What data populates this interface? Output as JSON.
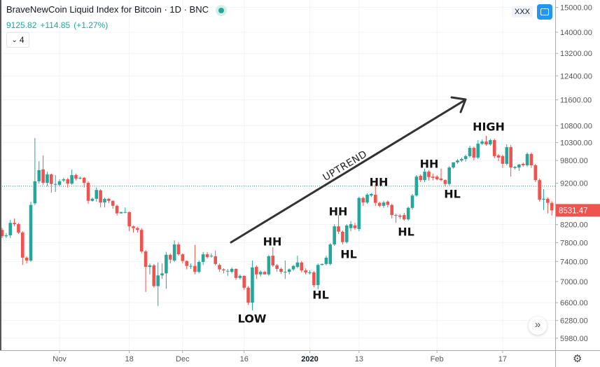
{
  "header": {
    "title": "BraveNewCoin Liquid Index for Bitcoin · 1D · BNC",
    "last": "9125.82",
    "change": "+114.85",
    "change_pct": "(+1.27%)",
    "legend_count": "4",
    "badge": "XXX"
  },
  "icons": {
    "fullscreen": "fullscreen-icon",
    "go_to_realtime": "double-chevron-right-icon",
    "settings": "gear-icon",
    "status": "status-dot-icon"
  },
  "colors": {
    "up": "#26a69a",
    "down": "#ef5350",
    "grid": "#f0f3fa",
    "accent": "#2196f3",
    "annotation": "#333333"
  },
  "annotations": {
    "uptrend": "UPTREND",
    "labels": [
      "LOW",
      "HH",
      "HL",
      "HH",
      "HL",
      "HH",
      "HL",
      "HH",
      "HL",
      "HIGH"
    ]
  },
  "chart_data": {
    "type": "candlestick",
    "title": "BraveNewCoin Liquid Index for Bitcoin · 1D · BNC",
    "y_scale": "log",
    "ylim": [
      5850,
      15500
    ],
    "y_ticks": [
      "15000.00",
      "14000.00",
      "13200.00",
      "12400.00",
      "11600.00",
      "10800.00",
      "10300.00",
      "9800.00",
      "9200.00",
      "8200.00",
      "7800.00",
      "7400.00",
      "7000.00",
      "6600.00",
      "6280.00",
      "5980.00"
    ],
    "x_ticks": [
      {
        "label": "Nov",
        "date": "2019-11-01"
      },
      {
        "label": "18",
        "date": "2019-11-18"
      },
      {
        "label": "Dec",
        "date": "2019-12-01"
      },
      {
        "label": "16",
        "date": "2019-12-16"
      },
      {
        "label": "2020",
        "date": "2020-01-01"
      },
      {
        "label": "13",
        "date": "2020-01-13"
      },
      {
        "label": "Feb",
        "date": "2020-02-01"
      },
      {
        "label": "17",
        "date": "2020-02-17"
      }
    ],
    "last_price_label": "8531.47",
    "price_line": 9125.82,
    "grid": true,
    "columns": [
      "date",
      "open",
      "high",
      "low",
      "close"
    ],
    "candles": [
      [
        "2019-10-18",
        8080,
        8130,
        7900,
        7940
      ],
      [
        "2019-10-19",
        7940,
        8010,
        7900,
        7960
      ],
      [
        "2019-10-20",
        7960,
        8310,
        7900,
        8240
      ],
      [
        "2019-10-21",
        8240,
        8340,
        8160,
        8210
      ],
      [
        "2019-10-22",
        8210,
        8240,
        7990,
        8020
      ],
      [
        "2019-10-23",
        8020,
        8050,
        7330,
        7480
      ],
      [
        "2019-10-24",
        7480,
        7510,
        7360,
        7420
      ],
      [
        "2019-10-25",
        7420,
        8740,
        7390,
        8660
      ],
      [
        "2019-10-26",
        8700,
        10430,
        8660,
        9250
      ],
      [
        "2019-10-27",
        9250,
        9780,
        9190,
        9540
      ],
      [
        "2019-10-28",
        9560,
        9940,
        9160,
        9210
      ],
      [
        "2019-10-29",
        9210,
        9500,
        9120,
        9430
      ],
      [
        "2019-10-30",
        9430,
        9450,
        8960,
        9180
      ],
      [
        "2019-10-31",
        9180,
        9410,
        8980,
        9180
      ],
      [
        "2019-11-01",
        9160,
        9300,
        9120,
        9250
      ],
      [
        "2019-11-02",
        9270,
        9340,
        9230,
        9300
      ],
      [
        "2019-11-03",
        9300,
        9340,
        9090,
        9190
      ],
      [
        "2019-11-04",
        9190,
        9560,
        9160,
        9410
      ],
      [
        "2019-11-05",
        9410,
        9450,
        9270,
        9320
      ],
      [
        "2019-11-06",
        9340,
        9370,
        9300,
        9340
      ],
      [
        "2019-11-07",
        9340,
        9360,
        9090,
        9210
      ],
      [
        "2019-11-08",
        9210,
        9250,
        8690,
        8760
      ],
      [
        "2019-11-09",
        8760,
        8840,
        8740,
        8810
      ],
      [
        "2019-11-10",
        8810,
        9090,
        8740,
        9030
      ],
      [
        "2019-11-11",
        9020,
        9050,
        8600,
        8720
      ],
      [
        "2019-11-12",
        8720,
        8840,
        8600,
        8810
      ],
      [
        "2019-11-13",
        8810,
        8830,
        8700,
        8760
      ],
      [
        "2019-11-14",
        8760,
        8770,
        8570,
        8640
      ],
      [
        "2019-11-15",
        8640,
        8670,
        8410,
        8460
      ],
      [
        "2019-11-16",
        8460,
        8500,
        8460,
        8490
      ],
      [
        "2019-11-17",
        8490,
        8600,
        8460,
        8490
      ],
      [
        "2019-11-18",
        8490,
        8500,
        8050,
        8160
      ],
      [
        "2019-11-19",
        8160,
        8180,
        8020,
        8120
      ],
      [
        "2019-11-20",
        8120,
        8150,
        8020,
        8080
      ],
      [
        "2019-11-21",
        8080,
        8120,
        7570,
        7610
      ],
      [
        "2019-11-22",
        7610,
        7640,
        6800,
        7290
      ],
      [
        "2019-11-23",
        7290,
        7360,
        7140,
        7320
      ],
      [
        "2019-11-24",
        7320,
        7350,
        6880,
        6910
      ],
      [
        "2019-11-25",
        6910,
        7380,
        6540,
        7120
      ],
      [
        "2019-11-26",
        7120,
        7360,
        7050,
        7160
      ],
      [
        "2019-11-27",
        7160,
        7600,
        6860,
        7540
      ],
      [
        "2019-11-28",
        7540,
        7570,
        7360,
        7440
      ],
      [
        "2019-11-29",
        7420,
        7850,
        7390,
        7760
      ],
      [
        "2019-11-30",
        7760,
        7810,
        7520,
        7550
      ],
      [
        "2019-12-01",
        7550,
        7570,
        7360,
        7410
      ],
      [
        "2019-12-02",
        7410,
        7420,
        7240,
        7310
      ],
      [
        "2019-12-03",
        7310,
        7360,
        7250,
        7310
      ],
      [
        "2019-12-04",
        7310,
        7750,
        7140,
        7190
      ],
      [
        "2019-12-05",
        7190,
        7420,
        7160,
        7390
      ],
      [
        "2019-12-06",
        7390,
        7600,
        7330,
        7550
      ],
      [
        "2019-12-07",
        7550,
        7600,
        7460,
        7490
      ],
      [
        "2019-12-08",
        7520,
        7570,
        7480,
        7520
      ],
      [
        "2019-12-09",
        7510,
        7630,
        7320,
        7350
      ],
      [
        "2019-12-10",
        7330,
        7360,
        7190,
        7240
      ],
      [
        "2019-12-11",
        7240,
        7260,
        7160,
        7220
      ],
      [
        "2019-12-12",
        7210,
        7250,
        7110,
        7210
      ],
      [
        "2019-12-13",
        7190,
        7280,
        7160,
        7250
      ],
      [
        "2019-12-14",
        7250,
        7260,
        7030,
        7070
      ],
      [
        "2019-12-15",
        7070,
        7140,
        7040,
        7110
      ],
      [
        "2019-12-16",
        7110,
        7120,
        6840,
        6880
      ],
      [
        "2019-12-17",
        6880,
        6910,
        6560,
        6600
      ],
      [
        "2019-12-18",
        6600,
        7420,
        6460,
        7280
      ],
      [
        "2019-12-19",
        7290,
        7320,
        7050,
        7140
      ],
      [
        "2019-12-20",
        7140,
        7220,
        7100,
        7190
      ],
      [
        "2019-12-21",
        7190,
        7210,
        7140,
        7140
      ],
      [
        "2019-12-22",
        7140,
        7540,
        7110,
        7510
      ],
      [
        "2019-12-23",
        7520,
        7700,
        7290,
        7320
      ],
      [
        "2019-12-24",
        7320,
        7350,
        7190,
        7250
      ],
      [
        "2019-12-25",
        7250,
        7280,
        7150,
        7190
      ],
      [
        "2019-12-26",
        7190,
        7420,
        7050,
        7190
      ],
      [
        "2019-12-27",
        7190,
        7260,
        7140,
        7240
      ],
      [
        "2019-12-28",
        7240,
        7330,
        7210,
        7310
      ],
      [
        "2019-12-29",
        7290,
        7520,
        7260,
        7380
      ],
      [
        "2019-12-30",
        7380,
        7410,
        7180,
        7220
      ],
      [
        "2019-12-31",
        7220,
        7260,
        7140,
        7180
      ],
      [
        "2020-01-01",
        7180,
        7220,
        7140,
        7180
      ],
      [
        "2020-01-02",
        7180,
        7210,
        6890,
        6930
      ],
      [
        "2020-01-03",
        6930,
        7360,
        6850,
        7330
      ],
      [
        "2020-01-04",
        7330,
        7360,
        7320,
        7350
      ],
      [
        "2020-01-05",
        7350,
        7520,
        7320,
        7480
      ],
      [
        "2020-01-06",
        7350,
        7790,
        7320,
        7760
      ],
      [
        "2020-01-07",
        7760,
        8210,
        7730,
        8160
      ],
      [
        "2020-01-08",
        8160,
        8420,
        7990,
        8040
      ],
      [
        "2020-01-09",
        8040,
        8070,
        7760,
        7810
      ],
      [
        "2020-01-10",
        7810,
        8210,
        7780,
        8180
      ],
      [
        "2020-01-11",
        8120,
        8280,
        8050,
        8210
      ],
      [
        "2020-01-12",
        8180,
        8240,
        8080,
        8120
      ],
      [
        "2020-01-13",
        8100,
        8860,
        8050,
        8830
      ],
      [
        "2020-01-14",
        8830,
        8860,
        8640,
        8720
      ],
      [
        "2020-01-15",
        8720,
        8950,
        8690,
        8910
      ],
      [
        "2020-01-16",
        8890,
        8950,
        8860,
        8930
      ],
      [
        "2020-01-17",
        8910,
        9180,
        8640,
        8710
      ],
      [
        "2020-01-18",
        8710,
        8740,
        8600,
        8640
      ],
      [
        "2020-01-19",
        8640,
        8760,
        8590,
        8720
      ],
      [
        "2020-01-20",
        8740,
        8770,
        8600,
        8660
      ],
      [
        "2020-01-21",
        8660,
        8690,
        8340,
        8420
      ],
      [
        "2020-01-22",
        8420,
        8450,
        8240,
        8410
      ],
      [
        "2020-01-23",
        8410,
        8440,
        8330,
        8380
      ],
      [
        "2020-01-24",
        8420,
        8470,
        8290,
        8320
      ],
      [
        "2020-01-25",
        8320,
        8620,
        8290,
        8590
      ],
      [
        "2020-01-26",
        8590,
        8930,
        8550,
        8890
      ],
      [
        "2020-01-27",
        8890,
        9410,
        8860,
        9370
      ],
      [
        "2020-01-28",
        9390,
        9430,
        9230,
        9280
      ],
      [
        "2020-01-29",
        9280,
        9580,
        9230,
        9500
      ],
      [
        "2020-01-30",
        9500,
        9540,
        9270,
        9360
      ],
      [
        "2020-01-31",
        9370,
        9450,
        9270,
        9340
      ],
      [
        "2020-02-01",
        9370,
        9410,
        9270,
        9300
      ],
      [
        "2020-02-02",
        9320,
        9580,
        9250,
        9280
      ],
      [
        "2020-02-03",
        9280,
        9300,
        9120,
        9180
      ],
      [
        "2020-02-04",
        9180,
        9650,
        9140,
        9610
      ],
      [
        "2020-02-05",
        9610,
        9750,
        9580,
        9750
      ],
      [
        "2020-02-06",
        9750,
        9840,
        9710,
        9800
      ],
      [
        "2020-02-07",
        9800,
        9880,
        9760,
        9840
      ],
      [
        "2020-02-08",
        9840,
        9960,
        9770,
        9920
      ],
      [
        "2020-02-09",
        9920,
        10210,
        9880,
        10150
      ],
      [
        "2020-02-10",
        10150,
        10190,
        9800,
        9880
      ],
      [
        "2020-02-11",
        9880,
        10370,
        9840,
        10270
      ],
      [
        "2020-02-12",
        10270,
        10390,
        10230,
        10330
      ],
      [
        "2020-02-13",
        10330,
        10500,
        10210,
        10250
      ],
      [
        "2020-02-14",
        10250,
        10410,
        10210,
        10370
      ],
      [
        "2020-02-15",
        10370,
        10410,
        9860,
        9920
      ],
      [
        "2020-02-16",
        9940,
        9980,
        9780,
        9880
      ],
      [
        "2020-02-17",
        9920,
        9960,
        9600,
        9710
      ],
      [
        "2020-02-18",
        9710,
        10250,
        9670,
        10170
      ],
      [
        "2020-02-19",
        10170,
        10230,
        9370,
        9610
      ],
      [
        "2020-02-20",
        9600,
        9650,
        9560,
        9630
      ],
      [
        "2020-02-21",
        9610,
        9710,
        9520,
        9690
      ],
      [
        "2020-02-22",
        9710,
        9750,
        9630,
        9670
      ],
      [
        "2020-02-23",
        9670,
        10020,
        9630,
        9980
      ],
      [
        "2020-02-24",
        9980,
        10020,
        9600,
        9670
      ],
      [
        "2020-02-25",
        9670,
        9710,
        9230,
        9280
      ],
      [
        "2020-02-26",
        9280,
        9320,
        8740,
        8790
      ],
      [
        "2020-02-27",
        8790,
        9050,
        8540,
        8810
      ],
      [
        "2020-02-28",
        8810,
        8840,
        8460,
        8710
      ],
      [
        "2020-02-29",
        8710,
        8750,
        8410,
        8531.47
      ]
    ]
  }
}
